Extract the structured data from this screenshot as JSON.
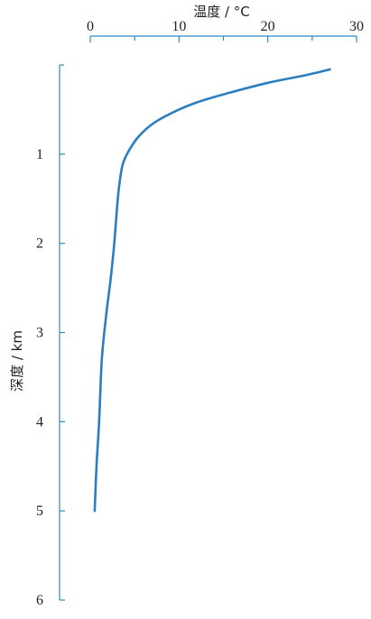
{
  "chart_data": {
    "type": "line",
    "xlabel": "温度 / °C",
    "ylabel": "深度 / km",
    "x_axis_position": "top",
    "y_axis_inverted": true,
    "xlim": [
      0,
      30
    ],
    "ylim": [
      0,
      6
    ],
    "x_ticks": [
      0,
      10,
      20,
      30
    ],
    "x_tick_labels": [
      "0",
      "10",
      "20",
      "30"
    ],
    "y_ticks": [
      1,
      2,
      3,
      4,
      5,
      6
    ],
    "y_tick_labels": [
      "1",
      "2",
      "3",
      "4",
      "5",
      "6"
    ],
    "series": [
      {
        "color": "#2b7fc0",
        "points": [
          {
            "x": 27.0,
            "y": 0.05
          },
          {
            "x": 24.0,
            "y": 0.12
          },
          {
            "x": 20.0,
            "y": 0.2
          },
          {
            "x": 15.0,
            "y": 0.33
          },
          {
            "x": 12.0,
            "y": 0.42
          },
          {
            "x": 10.0,
            "y": 0.5
          },
          {
            "x": 8.0,
            "y": 0.6
          },
          {
            "x": 6.5,
            "y": 0.7
          },
          {
            "x": 5.3,
            "y": 0.82
          },
          {
            "x": 4.3,
            "y": 0.97
          },
          {
            "x": 3.7,
            "y": 1.1
          },
          {
            "x": 3.4,
            "y": 1.25
          },
          {
            "x": 3.1,
            "y": 1.5
          },
          {
            "x": 2.7,
            "y": 2.0
          },
          {
            "x": 2.3,
            "y": 2.4
          },
          {
            "x": 1.8,
            "y": 2.8
          },
          {
            "x": 1.3,
            "y": 3.3
          },
          {
            "x": 1.0,
            "y": 4.0
          },
          {
            "x": 0.7,
            "y": 4.5
          },
          {
            "x": 0.5,
            "y": 5.0
          }
        ]
      }
    ]
  }
}
